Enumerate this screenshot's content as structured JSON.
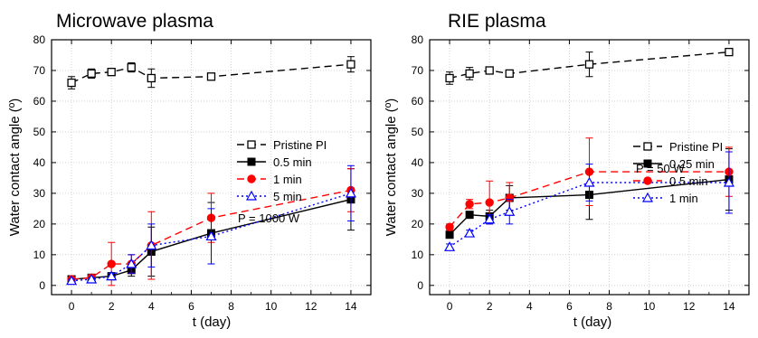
{
  "chart_data": [
    {
      "type": "line",
      "title": "Microwave plasma",
      "xlabel": "t (day)",
      "ylabel": "Water contact angle (º)",
      "xlim": [
        -1,
        15
      ],
      "ylim": [
        -3,
        80
      ],
      "xticks": [
        0,
        2,
        4,
        6,
        8,
        10,
        12,
        14
      ],
      "yticks": [
        0,
        10,
        20,
        30,
        40,
        50,
        60,
        70,
        80
      ],
      "grid": true,
      "legend_position": "right",
      "annotation": "P = 1000 W",
      "series": [
        {
          "name": "Pristine PI",
          "color": "#000000",
          "dash": "dash",
          "marker": "open-square",
          "x": [
            0,
            1,
            2,
            3,
            4,
            7,
            14
          ],
          "y": [
            66,
            69,
            69.5,
            71,
            67.5,
            68,
            72
          ],
          "err": [
            2,
            1.5,
            1,
            1.5,
            3,
            1,
            2.5
          ]
        },
        {
          "name": "0.5 min",
          "color": "#000000",
          "dash": "solid",
          "marker": "filled-square",
          "x": [
            0,
            1,
            2,
            3,
            4,
            7,
            14
          ],
          "y": [
            2,
            2.5,
            3,
            5,
            11,
            17,
            28
          ],
          "err": [
            0.5,
            0.5,
            1,
            2,
            8,
            10,
            10
          ]
        },
        {
          "name": "1 min",
          "color": "#ff0000",
          "dash": "dash",
          "marker": "filled-circle",
          "x": [
            0,
            1,
            2,
            3,
            4,
            7,
            14
          ],
          "y": [
            2,
            2.5,
            7,
            7,
            13,
            22,
            31
          ],
          "err": [
            0.5,
            1,
            7,
            3,
            11,
            8,
            7
          ]
        },
        {
          "name": "5 min",
          "color": "#0000ff",
          "dash": "dot",
          "marker": "open-triangle",
          "x": [
            0,
            1,
            2,
            3,
            4,
            7,
            14
          ],
          "y": [
            1.5,
            2,
            3,
            7,
            13,
            16,
            30
          ],
          "err": [
            0.5,
            0.5,
            1,
            3,
            7,
            9,
            9
          ]
        }
      ]
    },
    {
      "type": "line",
      "title": "RIE plasma",
      "xlabel": "t (day)",
      "ylabel": "Water contact angle (º)",
      "xlim": [
        -1,
        15
      ],
      "ylim": [
        -3,
        80
      ],
      "xticks": [
        0,
        2,
        4,
        6,
        8,
        10,
        12,
        14
      ],
      "yticks": [
        0,
        10,
        20,
        30,
        40,
        50,
        60,
        70,
        80
      ],
      "grid": true,
      "legend_position": "right",
      "annotation": "P = 50 W",
      "series": [
        {
          "name": "Pristine PI",
          "color": "#000000",
          "dash": "dash",
          "marker": "open-square",
          "x": [
            0,
            1,
            2,
            3,
            7,
            14
          ],
          "y": [
            67.5,
            69,
            70,
            69,
            72,
            76
          ],
          "err": [
            2,
            2,
            1,
            1,
            4,
            1
          ]
        },
        {
          "name": "0.25 min",
          "color": "#000000",
          "dash": "solid",
          "marker": "filled-square",
          "x": [
            0,
            1,
            2,
            3,
            7,
            14
          ],
          "y": [
            16.5,
            23,
            22.5,
            28.5,
            29.5,
            34.5
          ],
          "err": [
            1,
            1,
            2,
            4,
            8,
            10
          ]
        },
        {
          "name": "0.5 min",
          "color": "#ff0000",
          "dash": "dash",
          "marker": "filled-circle",
          "x": [
            0,
            1,
            2,
            3,
            7,
            14
          ],
          "y": [
            19,
            26.5,
            27,
            28.5,
            37,
            37
          ],
          "err": [
            1,
            1.5,
            7,
            5,
            11,
            8
          ]
        },
        {
          "name": "1 min",
          "color": "#0000ff",
          "dash": "dot",
          "marker": "open-triangle",
          "x": [
            0,
            1,
            2,
            3,
            7,
            14
          ],
          "y": [
            12.5,
            17,
            21.5,
            24,
            33.5,
            33.5
          ],
          "err": [
            1,
            1,
            1.5,
            4,
            6,
            10
          ]
        }
      ]
    }
  ]
}
